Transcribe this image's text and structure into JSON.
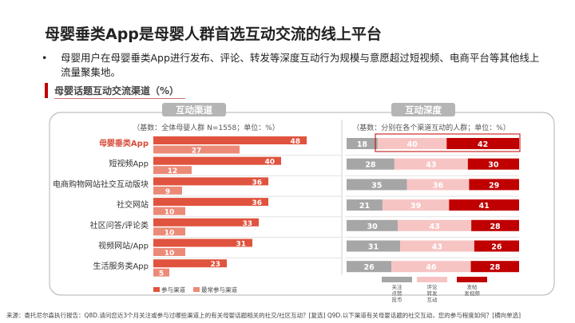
{
  "title": "母婴垂类App是母婴人群首选互动交流的线上平台",
  "bullet": {
    "marker": "•",
    "text": "母婴用户在母婴垂类App进行发布、评论、转发等深度互动行为规模与意愿超过短视频、电商平台等其他线上流量聚集地。"
  },
  "section_title": "母婴话题互动交流渠道（%）",
  "source": "来源：委托尼尔森执行报告：Q8D.请问您近3个月关注或参与过哪些渠道上的有关母婴话题相关的社交/社区互动？[复选] Q9D.以下渠道有关母婴话题的社交互动，您的参与程度如何？[横向单选]",
  "colors": {
    "accent": "#c00000",
    "bar_participate": "#e0533e",
    "bar_most": "#ec8a78",
    "seg_follow": "#a6a6a6",
    "seg_comment": "#f7c4c4",
    "seg_post": "#c00000",
    "pill": "#b5b5b5",
    "highlight_label": "#d84b3a"
  },
  "chart_data": [
    {
      "type": "bar",
      "title": "互动渠道",
      "subtitle": "（基数：全体母婴人群 N=1558；单位：%）",
      "categories": [
        "母婴垂类App",
        "短视频App",
        "电商购物网站社交互动版块",
        "社交网站",
        "社区问答/评论类",
        "视频网站/App",
        "生活服务类App"
      ],
      "highlight": "母婴垂类App",
      "series": [
        {
          "name": "参与渠道",
          "values": [
            48,
            40,
            36,
            36,
            33,
            31,
            23
          ]
        },
        {
          "name": "最常参与渠道",
          "values": [
            27,
            12,
            9,
            10,
            10,
            10,
            5
          ]
        }
      ],
      "xlim": [
        0,
        50
      ],
      "legend": "bottom-left"
    },
    {
      "type": "bar",
      "stacked": true,
      "title": "互动深度",
      "subtitle": "（基数：分别在各个渠道互动的人群；单位：%）",
      "categories": [
        "母婴垂类App",
        "短视频App",
        "电商购物网站社交互动版块",
        "社交网站",
        "社区问答/评论类",
        "视频网站/App",
        "生活服务类App"
      ],
      "series": [
        {
          "name": "关注 点赞 投币",
          "values": [
            18,
            28,
            35,
            21,
            30,
            31,
            26
          ]
        },
        {
          "name": "评论 转发 互动",
          "values": [
            40,
            43,
            36,
            39,
            43,
            43,
            46
          ]
        },
        {
          "name": "发帖 发视频",
          "values": [
            42,
            30,
            29,
            41,
            28,
            26,
            28
          ]
        }
      ],
      "xlim": [
        0,
        100
      ],
      "legend": "bottom"
    }
  ]
}
